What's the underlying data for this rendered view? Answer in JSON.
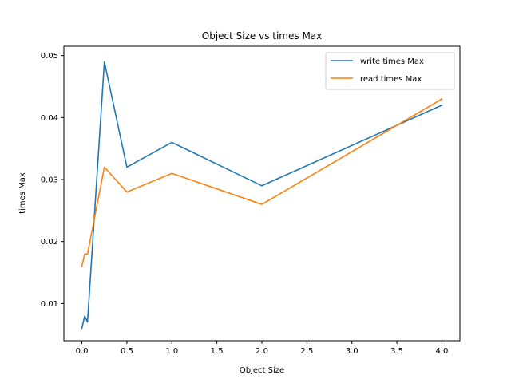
{
  "chart_data": {
    "type": "line",
    "title": "Object Size vs times Max",
    "xlabel": "Object Size",
    "ylabel": "times Max",
    "xlim": [
      -0.2,
      4.2
    ],
    "ylim": [
      0.004,
      0.0515
    ],
    "xticks": [
      0.0,
      0.5,
      1.0,
      1.5,
      2.0,
      2.5,
      3.0,
      3.5,
      4.0
    ],
    "xtick_labels": [
      "0.0",
      "0.5",
      "1.0",
      "1.5",
      "2.0",
      "2.5",
      "3.0",
      "3.5",
      "4.0"
    ],
    "yticks": [
      0.01,
      0.02,
      0.03,
      0.04,
      0.05
    ],
    "ytick_labels": [
      "0.01",
      "0.02",
      "0.03",
      "0.04",
      "0.05"
    ],
    "grid": false,
    "legend_position": "top-right",
    "x": [
      0.0,
      0.03125,
      0.0625,
      0.25,
      0.5,
      1.0,
      2.0,
      4.0
    ],
    "series": [
      {
        "name": "write times Max",
        "color": "#1f77b4",
        "values": [
          0.006,
          0.008,
          0.007,
          0.049,
          0.032,
          0.036,
          0.029,
          0.042
        ]
      },
      {
        "name": "read times Max",
        "color": "#ff7f0e",
        "values": [
          0.016,
          0.018,
          0.018,
          0.032,
          0.028,
          0.031,
          0.026,
          0.043
        ]
      }
    ]
  }
}
